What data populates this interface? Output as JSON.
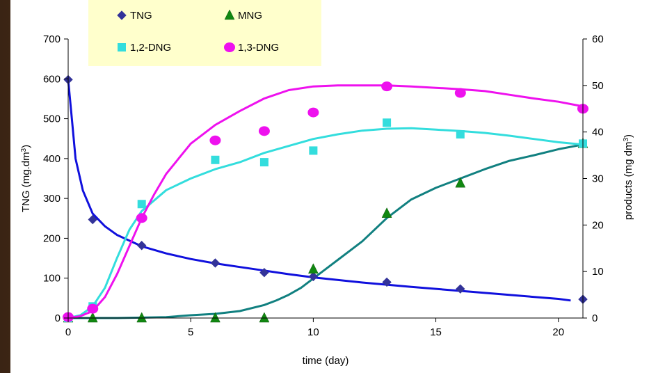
{
  "chart_data": {
    "type": "scatter",
    "xlabel": "time (day)",
    "ylabel_left": "TNG (mg.dm",
    "ylabel_right": "products (mg dm",
    "xlim": [
      0,
      21
    ],
    "ylim_left": [
      0,
      700
    ],
    "ylim_right": [
      0,
      60
    ],
    "xticks": [
      0,
      5,
      10,
      15,
      20
    ],
    "yticks_left": [
      0,
      100,
      200,
      300,
      400,
      500,
      600,
      700
    ],
    "yticks_right": [
      0,
      10,
      20,
      30,
      40,
      50,
      60
    ],
    "legend_placement": "top-left",
    "series": [
      {
        "name": "TNG",
        "axis": "left",
        "marker": "diamond",
        "color": "#333399",
        "x": [
          0,
          1,
          3,
          6,
          8,
          10,
          13,
          16,
          21
        ],
        "y": [
          598,
          247,
          182,
          138,
          114,
          104,
          90,
          73,
          47
        ],
        "fit_color": "#1010dd",
        "fit_x": [
          0,
          0.15,
          0.3,
          0.6,
          1,
          1.5,
          2,
          3,
          4,
          5,
          6,
          7,
          8,
          9,
          10,
          12,
          14,
          16,
          18,
          20,
          20.5
        ],
        "fit_y": [
          598,
          500,
          400,
          320,
          262,
          230,
          208,
          180,
          162,
          148,
          137,
          128,
          119,
          110,
          102,
          89,
          78,
          68,
          58,
          48,
          44
        ]
      },
      {
        "name": "MNG",
        "axis": "right",
        "marker": "triangle",
        "color": "#118811",
        "x": [
          0,
          1,
          3,
          6,
          8,
          10,
          13,
          16,
          21
        ],
        "y": [
          0,
          0,
          0,
          0,
          0,
          10.5,
          22.5,
          29,
          37.5
        ],
        "fit_color": "#118080",
        "fit_x": [
          0,
          2,
          4,
          5,
          6,
          7,
          8,
          8.5,
          9,
          9.5,
          10,
          11,
          12,
          13,
          14,
          15,
          16,
          17,
          18,
          19,
          20,
          21
        ],
        "fit_y": [
          0,
          0,
          0.2,
          0.6,
          0.9,
          1.5,
          2.8,
          3.8,
          5.0,
          6.5,
          8.5,
          12.5,
          16.5,
          21.5,
          25.5,
          28,
          30,
          32,
          33.8,
          35,
          36.3,
          37.3
        ]
      },
      {
        "name": "1,2-DNG",
        "axis": "right",
        "marker": "square",
        "color": "#33dddd",
        "x": [
          0,
          1,
          3,
          6,
          8,
          10,
          13,
          16,
          21
        ],
        "y": [
          0,
          2.5,
          24.5,
          34,
          33.5,
          36,
          42,
          39.5,
          37.5
        ],
        "fit_color": "#33dddd",
        "fit_x": [
          0,
          0.5,
          1,
          1.5,
          2,
          2.5,
          3,
          4,
          5,
          6,
          7,
          8,
          9,
          10,
          11,
          12,
          13,
          14,
          15,
          16,
          17,
          18,
          19,
          20,
          21
        ],
        "fit_y": [
          0,
          0.6,
          2.5,
          6.5,
          13,
          19,
          23,
          27.5,
          30,
          32,
          33.5,
          35.5,
          37,
          38.5,
          39.5,
          40.3,
          40.7,
          40.8,
          40.5,
          40.2,
          39.8,
          39.2,
          38.5,
          37.8,
          37.3
        ]
      },
      {
        "name": "1,3-DNG",
        "axis": "right",
        "marker": "circle",
        "color": "#ee11ee",
        "x": [
          0,
          1,
          3,
          6,
          8,
          10,
          13,
          16,
          21
        ],
        "y": [
          0.2,
          2.0,
          21.5,
          38.2,
          40.2,
          44.2,
          49.8,
          48.4,
          45
        ],
        "fit_color": "#ee11ee",
        "fit_x": [
          0,
          0.5,
          1,
          1.5,
          2,
          2.5,
          3,
          3.5,
          4,
          5,
          6,
          7,
          8,
          9,
          10,
          11,
          12,
          13,
          14,
          15,
          16,
          17,
          18,
          19,
          20,
          21
        ],
        "fit_y": [
          0,
          0.4,
          1.5,
          4.5,
          9.5,
          15.5,
          21.5,
          26.5,
          31,
          37.5,
          41.5,
          44.5,
          47.2,
          49,
          49.8,
          50,
          50,
          50,
          49.8,
          49.5,
          49.2,
          48.8,
          48,
          47.2,
          46.5,
          45.5
        ]
      }
    ]
  }
}
